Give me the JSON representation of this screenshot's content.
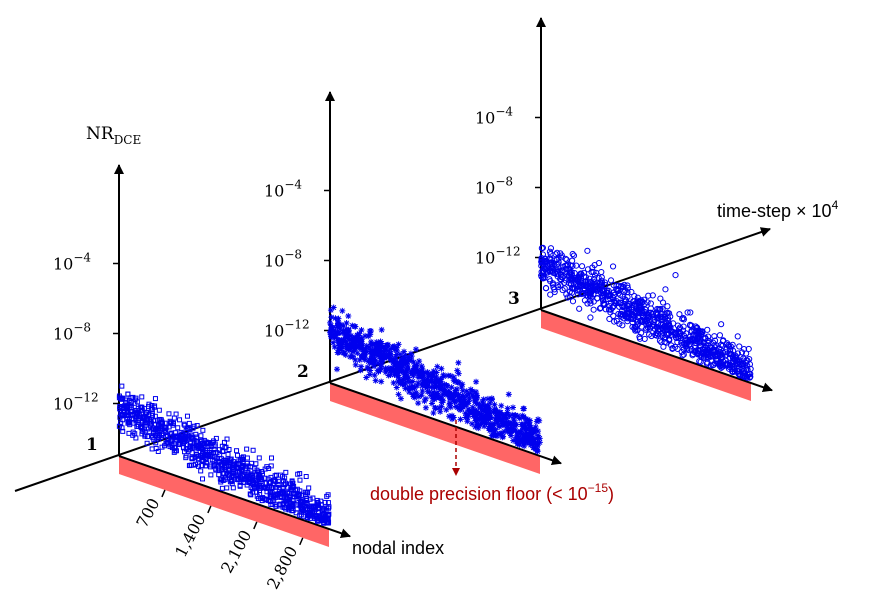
{
  "chart_data": {
    "type": "scatter",
    "title": "",
    "ylabel": {
      "base": "NR",
      "sub": "DCE"
    },
    "xlabel": "nodal index",
    "depth_axis_label": {
      "text": "time-step × 10",
      "sup": "4"
    },
    "floor_annotation": {
      "text": "double precision floor (< 10",
      "sup": "−15",
      "close": ")"
    },
    "nodal_index_ticks": [
      "700",
      "1,400",
      "2,100",
      "2,800"
    ],
    "nodal_index_range": [
      0,
      3200
    ],
    "y_tick_exponents": [
      "−12",
      "−8",
      "−4"
    ],
    "y_tick_base": "10",
    "y_range_log10": [
      -15,
      -2
    ],
    "double_precision_floor_log10": -15,
    "time_steps": [
      "1",
      "2",
      "3"
    ],
    "series": [
      {
        "name": "1",
        "time_step": 1,
        "marker": "square",
        "trend_log10": [
          -12.2,
          -14.5
        ],
        "spread_log10": 0.6,
        "n_points": 900
      },
      {
        "name": "2",
        "time_step": 2,
        "marker": "asterisk",
        "trend_log10": [
          -12.0,
          -14.3
        ],
        "spread_log10": 0.6,
        "n_points": 900
      },
      {
        "name": "3",
        "time_step": 3,
        "marker": "circle",
        "trend_log10": [
          -12.3,
          -14.3
        ],
        "spread_log10": 0.6,
        "n_points": 900
      }
    ],
    "colors": {
      "points": "#0000ee",
      "floor_band": "#ff6666",
      "annotation": "#aa0000",
      "axes": "#000000"
    }
  }
}
